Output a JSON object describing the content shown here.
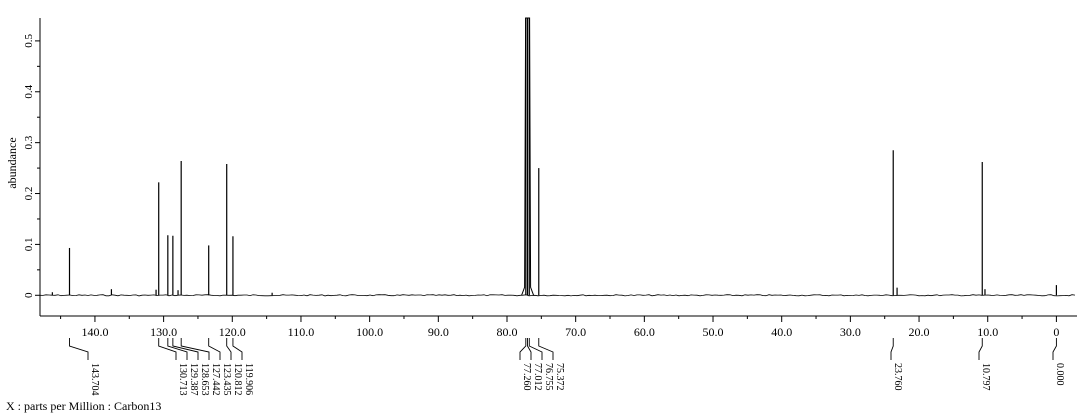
{
  "chart_data": {
    "type": "line",
    "title": "",
    "xlabel": "X : parts per Million : Carbon13",
    "xlabel_parts": {
      "axis": "X",
      "unit": "parts per Million",
      "nucleus": "Carbon13"
    },
    "ylabel": "abundance",
    "xlim": [
      148.0,
      -3.0
    ],
    "ylim": [
      -0.025,
      0.545
    ],
    "x_reversed": true,
    "x_ticks": [
      "140.0",
      "130.0",
      "120.0",
      "110.0",
      "100.0",
      "90.0",
      "80.0",
      "70.0",
      "60.0",
      "50.0",
      "40.0",
      "30.0",
      "20.0",
      "10.0",
      "0"
    ],
    "x_tick_values": [
      140,
      130,
      120,
      110,
      100,
      90,
      80,
      70,
      60,
      50,
      40,
      30,
      20,
      10,
      0
    ],
    "y_ticks": [
      "0",
      "0.1",
      "0.2",
      "0.3",
      "0.4",
      "0.5"
    ],
    "y_tick_values": [
      0,
      0.1,
      0.2,
      0.3,
      0.4,
      0.5
    ],
    "series": [
      {
        "peaks": [
          {
            "ppm": 146.2,
            "height": 0.006
          },
          {
            "ppm": 143.704,
            "height": 0.093
          },
          {
            "ppm": 137.6,
            "height": 0.012
          },
          {
            "ppm": 131.1,
            "height": 0.011
          },
          {
            "ppm": 130.713,
            "height": 0.222
          },
          {
            "ppm": 129.387,
            "height": 0.118
          },
          {
            "ppm": 128.653,
            "height": 0.117
          },
          {
            "ppm": 127.9,
            "height": 0.01
          },
          {
            "ppm": 127.442,
            "height": 0.264
          },
          {
            "ppm": 123.435,
            "height": 0.098
          },
          {
            "ppm": 120.812,
            "height": 0.258
          },
          {
            "ppm": 119.906,
            "height": 0.116
          },
          {
            "ppm": 114.2,
            "height": 0.005
          },
          {
            "ppm": 77.26,
            "height": 0.545
          },
          {
            "ppm": 77.012,
            "height": 0.545
          },
          {
            "ppm": 76.755,
            "height": 0.545
          },
          {
            "ppm": 75.372,
            "height": 0.25
          },
          {
            "ppm": 23.76,
            "height": 0.285
          },
          {
            "ppm": 23.2,
            "height": 0.015
          },
          {
            "ppm": 10.797,
            "height": 0.262
          },
          {
            "ppm": 10.4,
            "height": 0.012
          },
          {
            "ppm": 0.0,
            "height": 0.02
          }
        ]
      }
    ],
    "peak_labels": [
      {
        "ppm": 143.704,
        "label": "143.704"
      },
      {
        "ppm": 130.713,
        "label": "130.713"
      },
      {
        "ppm": 129.387,
        "label": "129.387"
      },
      {
        "ppm": 128.653,
        "label": "128.653"
      },
      {
        "ppm": 127.442,
        "label": "127.442"
      },
      {
        "ppm": 123.435,
        "label": "123.435"
      },
      {
        "ppm": 120.812,
        "label": "120.812"
      },
      {
        "ppm": 119.906,
        "label": "119.906"
      },
      {
        "ppm": 77.26,
        "label": "77.260"
      },
      {
        "ppm": 77.012,
        "label": "77.012"
      },
      {
        "ppm": 76.755,
        "label": "76.755"
      },
      {
        "ppm": 75.372,
        "label": "75.372"
      },
      {
        "ppm": 23.76,
        "label": "23.760"
      },
      {
        "ppm": 10.797,
        "label": "10.797"
      },
      {
        "ppm": 0.0,
        "label": "0.000"
      }
    ],
    "grid": false,
    "legend": "none",
    "line_color": "#000000"
  }
}
